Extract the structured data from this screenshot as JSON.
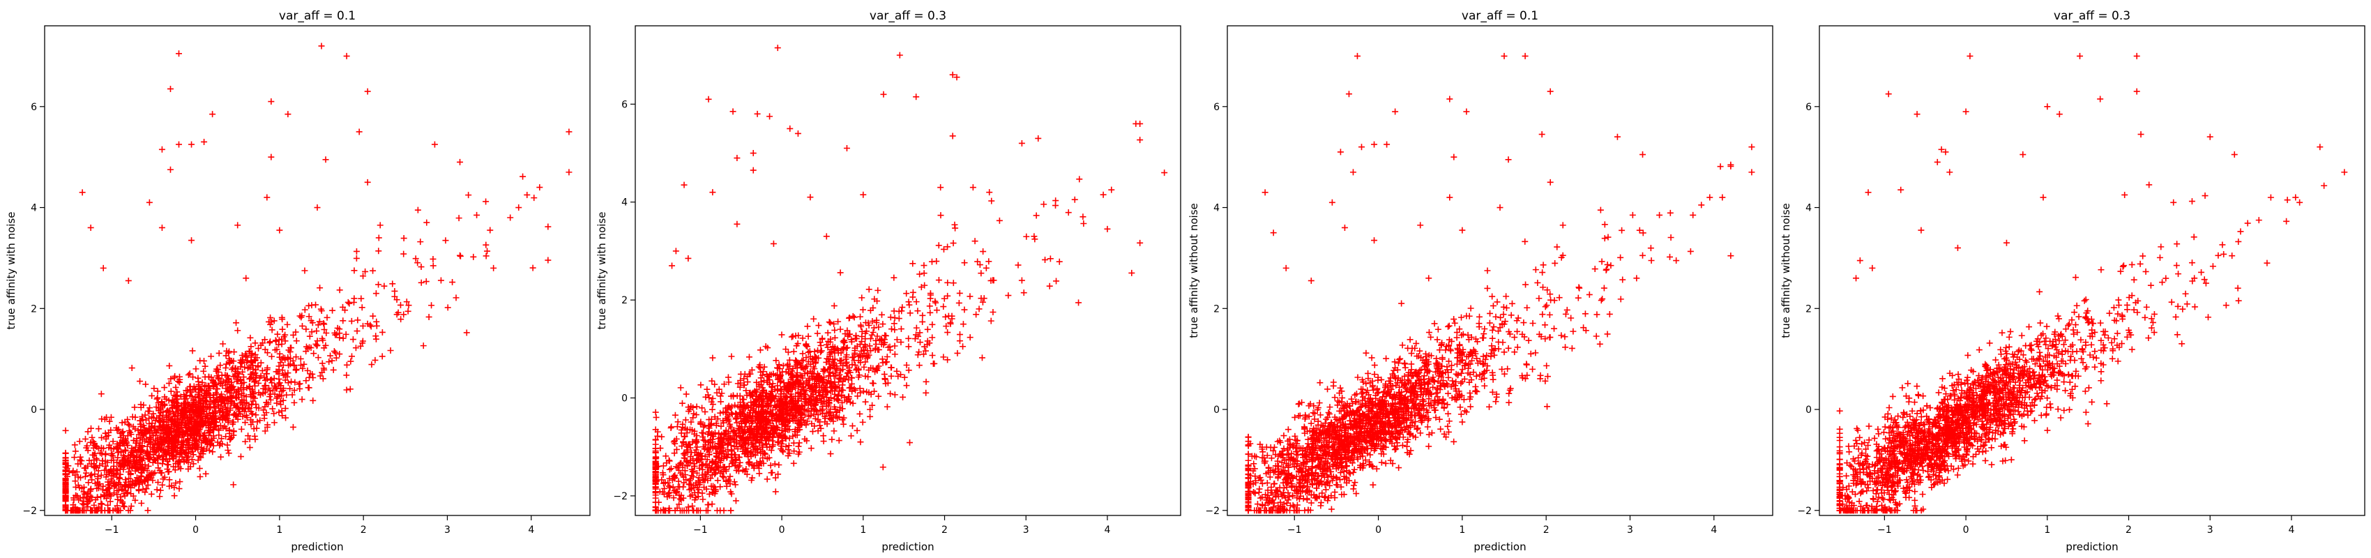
{
  "figure": {
    "marker_color": "#ff0000",
    "marker_symbol": "+",
    "axis_color": "#000000",
    "background": "#ffffff"
  },
  "chart_data": [
    {
      "type": "scatter",
      "title": "var_aff = 0.1",
      "xlabel": "prediction",
      "ylabel": "true affinity with noise",
      "xlim": [
        -1.8,
        4.7
      ],
      "ylim": [
        -2.1,
        7.6
      ],
      "xticks": [
        -1,
        0,
        1,
        2,
        3,
        4
      ],
      "yticks": [
        -2,
        0,
        2,
        4,
        6
      ],
      "tick_labels_x": [
        "−1",
        "0",
        "1",
        "2",
        "3",
        "4"
      ],
      "tick_labels_y": [
        "−2",
        "0",
        "2",
        "4",
        "6"
      ],
      "grid": false,
      "legend": "none",
      "color": "#ff0000",
      "outliers": [
        [
          -0.2,
          7.05
        ],
        [
          1.5,
          7.2
        ],
        [
          1.8,
          7.0
        ],
        [
          -0.3,
          6.35
        ],
        [
          0.9,
          6.1
        ],
        [
          1.1,
          5.85
        ],
        [
          2.05,
          6.3
        ],
        [
          0.2,
          5.85
        ],
        [
          -0.4,
          5.15
        ],
        [
          -0.2,
          5.25
        ],
        [
          -0.05,
          5.25
        ],
        [
          0.1,
          5.3
        ],
        [
          1.95,
          5.5
        ],
        [
          0.9,
          5.0
        ],
        [
          1.55,
          4.95
        ],
        [
          -0.3,
          4.75
        ],
        [
          2.05,
          4.5
        ],
        [
          2.85,
          5.25
        ],
        [
          3.15,
          4.9
        ],
        [
          -1.35,
          4.3
        ],
        [
          -0.55,
          4.1
        ],
        [
          0.85,
          4.2
        ],
        [
          1.45,
          4.0
        ],
        [
          -0.4,
          3.6
        ],
        [
          0.5,
          3.65
        ],
        [
          -1.25,
          3.6
        ],
        [
          -0.05,
          3.35
        ],
        [
          1.0,
          3.55
        ],
        [
          2.2,
          3.65
        ],
        [
          2.65,
          3.95
        ],
        [
          4.45,
          5.5
        ],
        [
          4.45,
          4.7
        ],
        [
          4.1,
          4.4
        ],
        [
          3.95,
          4.25
        ],
        [
          3.85,
          4.0
        ],
        [
          3.75,
          3.8
        ],
        [
          3.55,
          2.8
        ],
        [
          3.35,
          3.85
        ],
        [
          3.15,
          3.05
        ],
        [
          -1.1,
          2.8
        ],
        [
          -0.8,
          2.55
        ],
        [
          0.6,
          2.6
        ],
        [
          1.3,
          2.75
        ]
      ],
      "trend": {
        "slope": 1.0,
        "intercept": -0.2,
        "x_center": -0.4,
        "x_spread": 0.75,
        "noise": 0.62,
        "count": 2100
      }
    },
    {
      "type": "scatter",
      "title": "var_aff = 0.3",
      "xlabel": "prediction",
      "ylabel": "true affinity with noise",
      "xlim": [
        -1.8,
        4.9
      ],
      "ylim": [
        -2.4,
        7.6
      ],
      "xticks": [
        -1,
        0,
        1,
        2,
        3,
        4
      ],
      "yticks": [
        -2,
        0,
        2,
        4,
        6
      ],
      "tick_labels_x": [
        "−1",
        "0",
        "1",
        "2",
        "3",
        "4"
      ],
      "tick_labels_y": [
        "−2",
        "0",
        "2",
        "4",
        "6"
      ],
      "grid": false,
      "legend": "none",
      "color": "#ff0000",
      "outliers": [
        [
          -0.05,
          7.15
        ],
        [
          1.45,
          7.0
        ],
        [
          2.1,
          6.6
        ],
        [
          2.15,
          6.55
        ],
        [
          -0.9,
          6.1
        ],
        [
          -0.6,
          5.85
        ],
        [
          -0.3,
          5.8
        ],
        [
          -0.15,
          5.75
        ],
        [
          1.25,
          6.2
        ],
        [
          1.65,
          6.15
        ],
        [
          0.1,
          5.5
        ],
        [
          0.2,
          5.4
        ],
        [
          2.1,
          5.35
        ],
        [
          -0.35,
          5.0
        ],
        [
          -0.55,
          4.9
        ],
        [
          0.8,
          5.1
        ],
        [
          -0.35,
          4.65
        ],
        [
          3.15,
          5.3
        ],
        [
          2.95,
          5.2
        ],
        [
          4.35,
          5.6
        ],
        [
          4.7,
          4.6
        ],
        [
          -1.2,
          4.35
        ],
        [
          -0.85,
          4.2
        ],
        [
          1.0,
          4.15
        ],
        [
          1.95,
          4.3
        ],
        [
          2.35,
          4.3
        ],
        [
          2.55,
          4.2
        ],
        [
          3.6,
          4.05
        ],
        [
          3.95,
          4.15
        ],
        [
          4.05,
          4.25
        ],
        [
          4.0,
          3.45
        ],
        [
          3.7,
          3.7
        ],
        [
          3.1,
          3.3
        ],
        [
          2.95,
          2.4
        ],
        [
          -0.55,
          3.55
        ],
        [
          -0.1,
          3.15
        ],
        [
          0.35,
          4.1
        ],
        [
          -1.3,
          3.0
        ],
        [
          -1.15,
          2.85
        ],
        [
          0.55,
          3.3
        ],
        [
          -1.35,
          2.7
        ]
      ],
      "trend": {
        "slope": 1.0,
        "intercept": -0.2,
        "x_center": -0.35,
        "x_spread": 0.75,
        "noise": 0.72,
        "count": 2100
      }
    },
    {
      "type": "scatter",
      "title": "var_aff = 0.1",
      "xlabel": "prediction",
      "ylabel": "true affinity without noise",
      "xlim": [
        -1.8,
        4.7
      ],
      "ylim": [
        -2.1,
        7.6
      ],
      "xticks": [
        -1,
        0,
        1,
        2,
        3,
        4
      ],
      "yticks": [
        -2,
        0,
        2,
        4,
        6
      ],
      "tick_labels_x": [
        "−1",
        "0",
        "1",
        "2",
        "3",
        "4"
      ],
      "tick_labels_y": [
        "−2",
        "0",
        "2",
        "4",
        "6"
      ],
      "grid": false,
      "legend": "none",
      "color": "#ff0000",
      "outliers": [
        [
          -0.25,
          7.0
        ],
        [
          1.5,
          7.0
        ],
        [
          1.75,
          7.0
        ],
        [
          -0.35,
          6.25
        ],
        [
          0.85,
          6.15
        ],
        [
          1.05,
          5.9
        ],
        [
          2.05,
          6.3
        ],
        [
          0.2,
          5.9
        ],
        [
          -0.45,
          5.1
        ],
        [
          -0.2,
          5.2
        ],
        [
          -0.05,
          5.25
        ],
        [
          0.1,
          5.25
        ],
        [
          1.95,
          5.45
        ],
        [
          0.9,
          5.0
        ],
        [
          1.55,
          4.95
        ],
        [
          -0.3,
          4.7
        ],
        [
          2.05,
          4.5
        ],
        [
          2.85,
          5.4
        ],
        [
          3.15,
          5.05
        ],
        [
          -1.35,
          4.3
        ],
        [
          -0.55,
          4.1
        ],
        [
          0.85,
          4.2
        ],
        [
          1.45,
          4.0
        ],
        [
          -0.4,
          3.6
        ],
        [
          0.5,
          3.65
        ],
        [
          -1.25,
          3.5
        ],
        [
          -0.05,
          3.35
        ],
        [
          1.0,
          3.55
        ],
        [
          2.2,
          3.65
        ],
        [
          2.65,
          3.95
        ],
        [
          4.45,
          5.2
        ],
        [
          4.45,
          4.7
        ],
        [
          4.1,
          4.2
        ],
        [
          3.95,
          4.2
        ],
        [
          3.85,
          4.05
        ],
        [
          3.75,
          3.85
        ],
        [
          3.55,
          2.95
        ],
        [
          3.35,
          3.85
        ],
        [
          3.15,
          3.05
        ],
        [
          -1.1,
          2.8
        ],
        [
          -0.8,
          2.55
        ],
        [
          0.6,
          2.6
        ],
        [
          1.3,
          2.75
        ]
      ],
      "trend": {
        "slope": 1.0,
        "intercept": -0.2,
        "x_center": -0.4,
        "x_spread": 0.75,
        "noise": 0.6,
        "count": 2100
      }
    },
    {
      "type": "scatter",
      "title": "var_aff = 0.3",
      "xlabel": "prediction",
      "ylabel": "true affinity without noise",
      "xlim": [
        -1.8,
        4.9
      ],
      "ylim": [
        -2.1,
        7.6
      ],
      "xticks": [
        -1,
        0,
        1,
        2,
        3,
        4
      ],
      "yticks": [
        -2,
        0,
        2,
        4,
        6
      ],
      "tick_labels_x": [
        "−1",
        "0",
        "1",
        "2",
        "3",
        "4"
      ],
      "tick_labels_y": [
        "−2",
        "0",
        "2",
        "4",
        "6"
      ],
      "grid": false,
      "legend": "none",
      "color": "#ff0000",
      "outliers": [
        [
          0.05,
          7.0
        ],
        [
          1.4,
          7.0
        ],
        [
          2.1,
          7.0
        ],
        [
          2.1,
          6.3
        ],
        [
          -0.95,
          6.25
        ],
        [
          -0.6,
          5.85
        ],
        [
          0.0,
          5.9
        ],
        [
          1.0,
          6.0
        ],
        [
          1.15,
          5.85
        ],
        [
          1.65,
          6.15
        ],
        [
          2.15,
          5.45
        ],
        [
          -0.3,
          5.15
        ],
        [
          -0.25,
          5.1
        ],
        [
          -0.35,
          4.9
        ],
        [
          0.7,
          5.05
        ],
        [
          -0.2,
          4.7
        ],
        [
          3.0,
          5.4
        ],
        [
          3.3,
          5.05
        ],
        [
          4.35,
          5.2
        ],
        [
          4.65,
          4.7
        ],
        [
          -1.2,
          4.3
        ],
        [
          -0.8,
          4.35
        ],
        [
          0.95,
          4.2
        ],
        [
          1.95,
          4.25
        ],
        [
          2.25,
          4.45
        ],
        [
          2.55,
          4.1
        ],
        [
          3.6,
          3.75
        ],
        [
          3.95,
          4.15
        ],
        [
          4.05,
          4.2
        ],
        [
          4.1,
          4.1
        ],
        [
          3.7,
          2.9
        ],
        [
          3.1,
          3.05
        ],
        [
          2.95,
          2.5
        ],
        [
          -0.55,
          3.55
        ],
        [
          -0.1,
          3.2
        ],
        [
          -1.3,
          2.95
        ],
        [
          -1.15,
          2.8
        ],
        [
          0.5,
          3.3
        ],
        [
          -1.35,
          2.6
        ]
      ],
      "trend": {
        "slope": 1.0,
        "intercept": -0.2,
        "x_center": -0.35,
        "x_spread": 0.75,
        "noise": 0.6,
        "count": 2100
      }
    }
  ]
}
